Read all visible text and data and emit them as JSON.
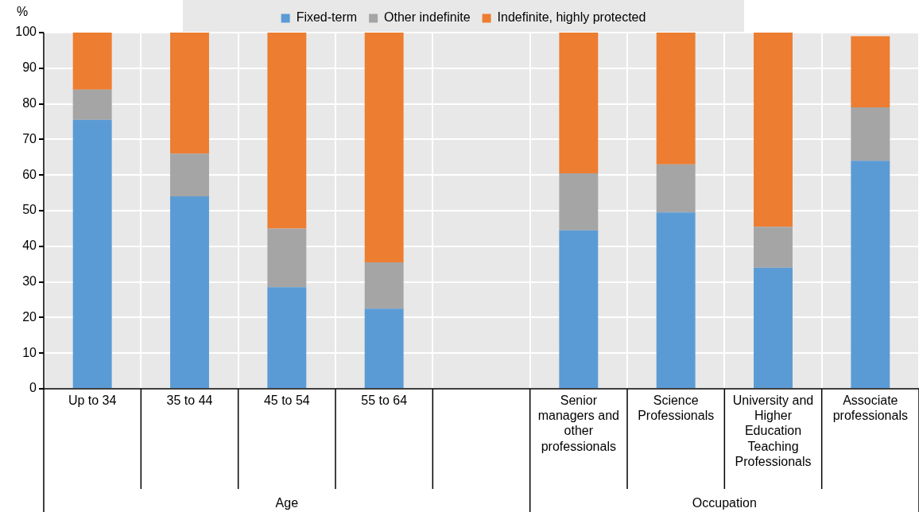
{
  "chart_data": {
    "type": "bar",
    "stacked": true,
    "ylabel": "%",
    "categories": [
      "Up to 34",
      "35 to 44",
      "45 to 54",
      "55 to 64",
      null,
      "Senior managers and other professionals",
      "Science Professionals",
      "University and Higher Education Teaching Professionals",
      "Associate professionals"
    ],
    "series": [
      {
        "name": "Fixed-term",
        "color": "#5b9bd5",
        "values": [
          75.5,
          54,
          28.5,
          22.5,
          null,
          44.5,
          49.5,
          34,
          64
        ]
      },
      {
        "name": "Other indefinite",
        "color": "#a5a5a5",
        "values": [
          8.5,
          12,
          16.5,
          13,
          null,
          16,
          13.5,
          11.5,
          15
        ]
      },
      {
        "name": "Indefinite, highly protected",
        "color": "#ed7d31",
        "values": [
          16,
          34,
          55,
          64.5,
          null,
          39.5,
          37,
          54.5,
          20
        ]
      }
    ],
    "annotations": [
      "Age",
      "Occupation"
    ],
    "ylim": [
      0,
      100
    ],
    "yticks": [
      0,
      10,
      20,
      30,
      40,
      50,
      60,
      70,
      80,
      90,
      100
    ],
    "grid": true,
    "legend": "top"
  }
}
